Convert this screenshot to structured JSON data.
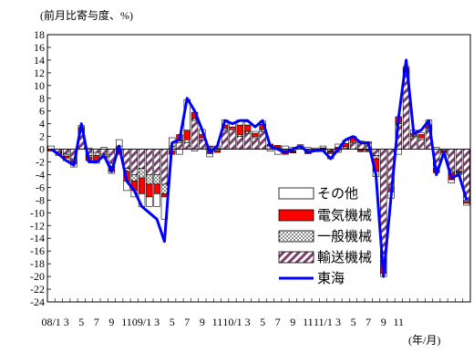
{
  "chart_data": {
    "type": "bar",
    "subtype": "stacked-bar-with-line",
    "ylabel": "(前月比寄与度、%)",
    "xlabel": "(年/月)",
    "ylim": [
      -24,
      18
    ],
    "ytick_step": 2,
    "grid": false,
    "legend_position": "bottom-right",
    "x_tick_labels": [
      "08/1",
      "3",
      "5",
      "7",
      "9",
      "11",
      "09/1",
      "3",
      "5",
      "7",
      "9",
      "11",
      "10/1",
      "3",
      "5",
      "7",
      "9",
      "11",
      "11/1",
      "3",
      "5",
      "7",
      "9",
      "11"
    ],
    "series": [
      {
        "name": "その他",
        "color": "#ffffff",
        "pattern": "outline",
        "values": [
          0.5,
          -0.2,
          -0.4,
          -0.5,
          0.3,
          0.2,
          -0.2,
          0.3,
          -0.3,
          1.0,
          -1.5,
          -1.0,
          -2.0,
          -1.5,
          -2.0,
          -3.5,
          1.3,
          -0.8,
          4.8,
          -0.3,
          0.8,
          -0.5,
          0.3,
          0.8,
          0.5,
          0.8,
          0.5,
          0.3,
          0.5,
          -0.3,
          -0.8,
          0.5,
          0.3,
          0.2,
          0.3,
          0.2,
          0.3,
          -0.8,
          0.5,
          0.5,
          0.3,
          0.3,
          0.2,
          -0.8,
          -0.5,
          -1.0,
          -0.8,
          0.3,
          0.5,
          0.3,
          0.8,
          0.3,
          -0.3,
          -0.5,
          -0.2,
          -0.3
        ]
      },
      {
        "name": "電気機械",
        "color": "#ff0000",
        "pattern": "solid",
        "values": [
          -0.3,
          -0.2,
          -0.3,
          -0.5,
          0.2,
          -0.5,
          -1.0,
          -0.3,
          -0.8,
          -0.5,
          -1.5,
          -1.5,
          -2.5,
          -2.0,
          -1.5,
          -0.5,
          -0.5,
          1.0,
          1.5,
          1.0,
          0.5,
          -0.5,
          -0.3,
          0.5,
          0.3,
          1.5,
          1.0,
          0.5,
          0.8,
          0.2,
          0.3,
          -0.2,
          -0.2,
          0.2,
          -0.2,
          -0.1,
          0.1,
          -0.3,
          0.2,
          0.5,
          0.5,
          -0.3,
          -0.3,
          -2.0,
          -2.0,
          -0.5,
          0.8,
          0.5,
          0.3,
          0.5,
          0.5,
          -0.5,
          -0.3,
          -1.0,
          -0.2,
          -0.3
        ]
      },
      {
        "name": "一般機械",
        "color": "#000000",
        "pattern": "dots",
        "values": [
          0.0,
          -0.2,
          -0.3,
          -0.3,
          0.2,
          -0.3,
          -0.5,
          -0.3,
          -0.5,
          -0.3,
          -0.5,
          -1.0,
          -1.5,
          -1.5,
          -1.5,
          -1.5,
          -0.3,
          0.3,
          0.5,
          0.3,
          0.3,
          -0.2,
          -0.2,
          0.3,
          0.2,
          0.3,
          0.3,
          0.2,
          0.3,
          0.1,
          0.1,
          -0.1,
          -0.1,
          0.1,
          0.0,
          0.0,
          0.1,
          -0.1,
          0.1,
          0.2,
          0.2,
          -0.1,
          -0.1,
          -0.5,
          -0.5,
          -0.2,
          0.3,
          0.2,
          0.2,
          0.3,
          0.3,
          -0.2,
          -0.1,
          -0.3,
          -0.1,
          -0.2
        ]
      },
      {
        "name": "輸送機械",
        "color": "#7b3f6e",
        "pattern": "hatch",
        "values": [
          0.0,
          -0.4,
          -0.8,
          -1.5,
          3.0,
          -1.0,
          -0.5,
          -0.8,
          -2.2,
          0.5,
          -3.0,
          -4.0,
          -3.0,
          -4.0,
          -4.0,
          -5.5,
          0.5,
          1.0,
          1.0,
          4.5,
          1.5,
          0.5,
          0.2,
          3.0,
          3.0,
          2.0,
          2.5,
          1.8,
          2.8,
          0.5,
          0.2,
          -0.5,
          -0.3,
          0.2,
          -0.5,
          -0.3,
          -0.2,
          -0.3,
          -0.5,
          0.2,
          1.0,
          1.0,
          1.0,
          -1.0,
          -17.0,
          -6.0,
          4.0,
          12.0,
          2.0,
          1.5,
          3.0,
          -3.0,
          -0.2,
          -3.5,
          -3.5,
          -8.0
        ]
      }
    ],
    "line": {
      "name": "東海",
      "color": "#0000ff",
      "values": [
        0.0,
        -0.8,
        -1.8,
        -2.5,
        4.0,
        -2.0,
        -2.0,
        -1.0,
        -3.5,
        0.5,
        -5.0,
        -6.5,
        -9.0,
        -10.0,
        -11.0,
        -14.5,
        1.0,
        1.5,
        8.0,
        6.0,
        3.0,
        -0.5,
        0.5,
        4.5,
        4.0,
        4.5,
        4.5,
        3.5,
        4.5,
        0.5,
        0.0,
        -0.5,
        0.0,
        0.5,
        -0.5,
        -0.2,
        -0.2,
        -1.5,
        0.0,
        1.5,
        2.0,
        1.0,
        1.0,
        -4.0,
        -20.0,
        -7.5,
        5.0,
        14.0,
        2.5,
        3.0,
        4.5,
        -4.0,
        -0.5,
        -4.5,
        -4.0,
        -8.0
      ]
    }
  }
}
